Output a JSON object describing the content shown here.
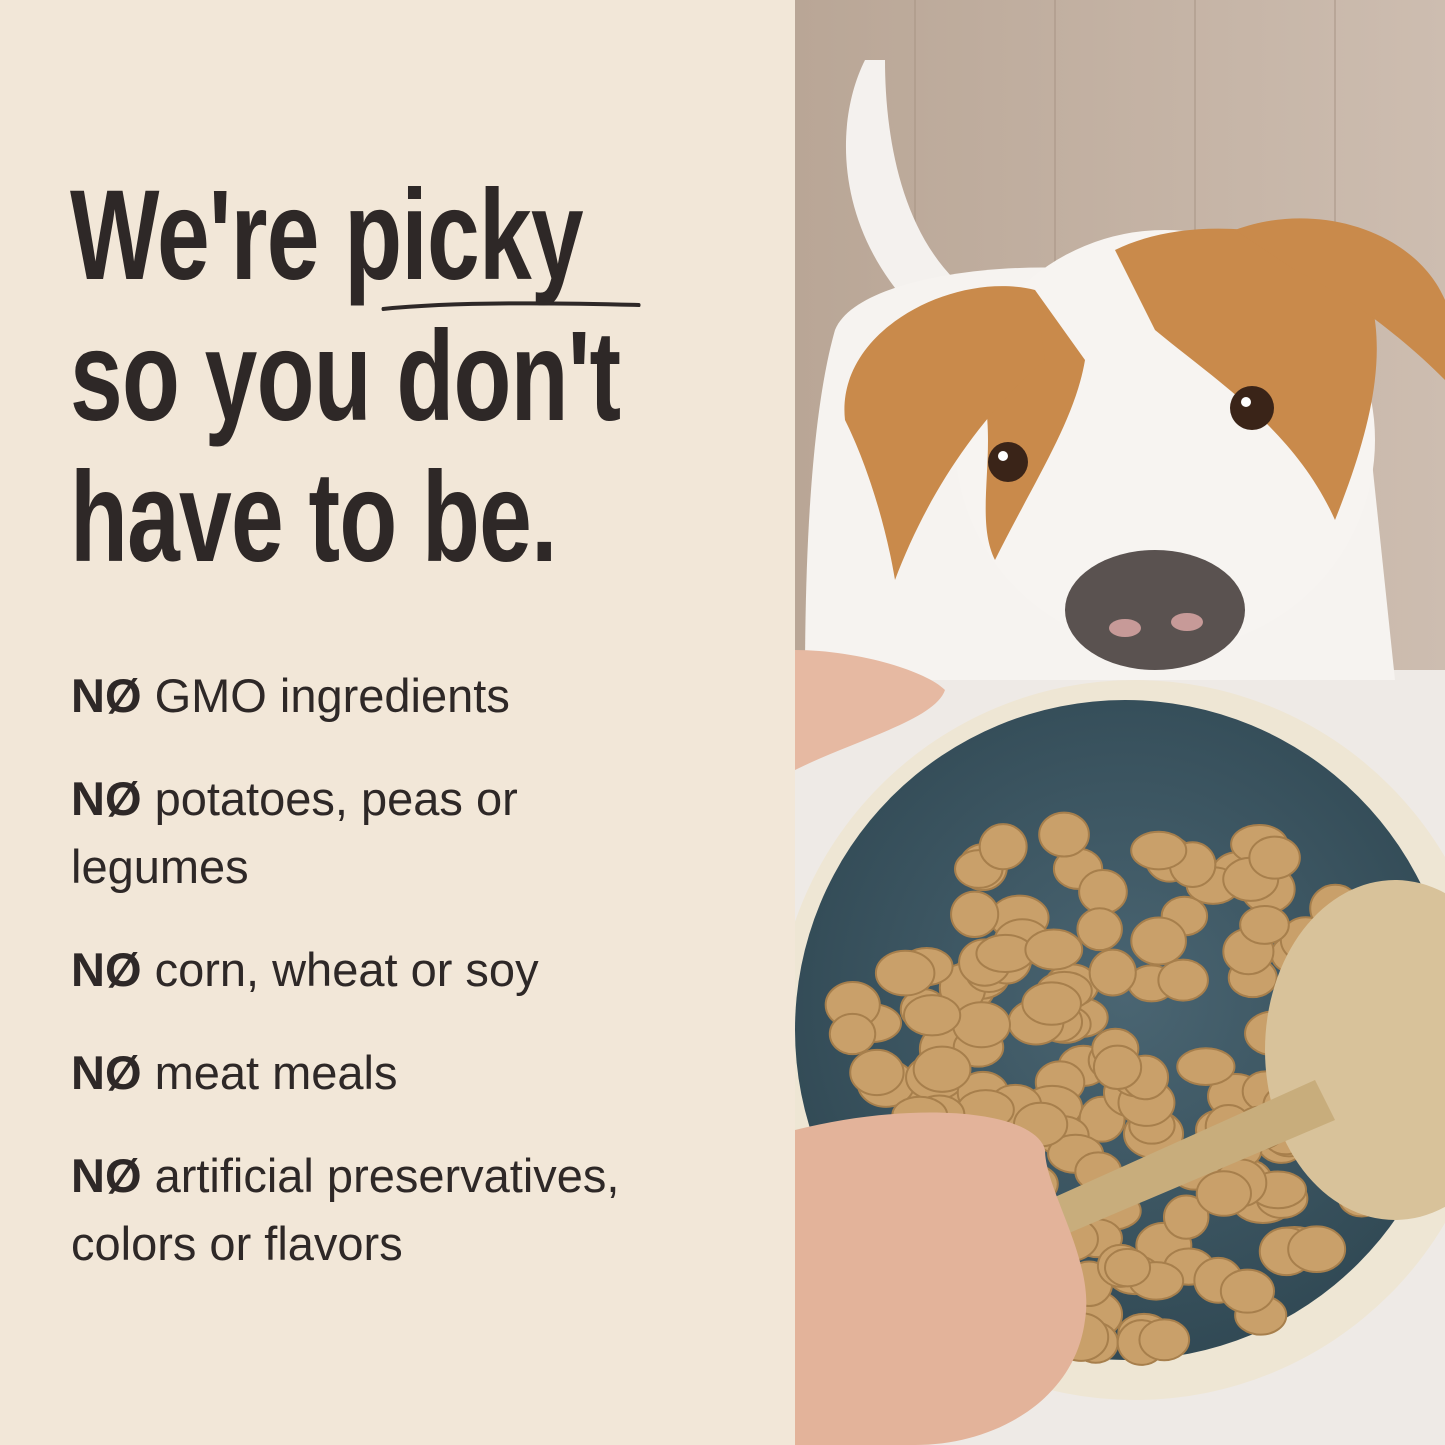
{
  "headline": {
    "line1_prefix": "We're ",
    "line1_emphasis": "picky",
    "line2": "so you don't",
    "line3": "have to be."
  },
  "claims": [
    {
      "prefix": "NØ",
      "text": "GMO ingredients"
    },
    {
      "prefix": "NØ",
      "text": "potatoes, peas or legumes"
    },
    {
      "prefix": "NØ",
      "text": "corn, wheat or soy"
    },
    {
      "prefix": "NØ",
      "text": "meat meals"
    },
    {
      "prefix": "NØ",
      "text": "artificial preservatives, colors or flavors"
    }
  ],
  "colors": {
    "background": "#f2e7d8",
    "text": "#2e2827",
    "bowl": "#3c5663",
    "kibble": "#c9a06a",
    "dog_orange": "#c98a4b"
  }
}
